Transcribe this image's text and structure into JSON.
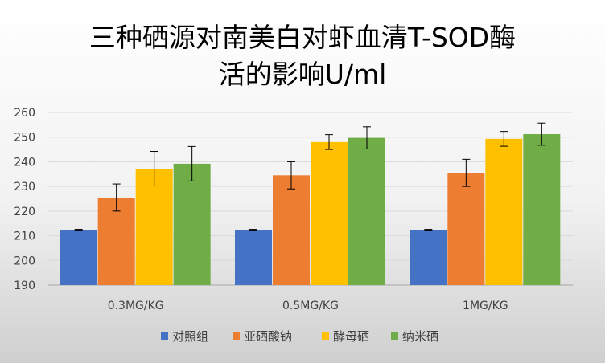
{
  "chart_data": {
    "type": "bar",
    "title_line1": "三种硒源对南美白对虾血清T-SOD酶",
    "title_line2": "活的影响U/ml",
    "categories": [
      "0.3MG/KG",
      "0.5MG/KG",
      "1MG/KG"
    ],
    "ylim": [
      190,
      260
    ],
    "yticks": [
      190,
      200,
      210,
      220,
      230,
      240,
      250,
      260
    ],
    "xlabel": "",
    "ylabel": "",
    "grid": true,
    "legend_position": "bottom",
    "series": [
      {
        "name": "对照组",
        "color": "#4472C4",
        "values": [
          212.3,
          212.3,
          212.3
        ],
        "errors": [
          0.3,
          0.3,
          0.3
        ]
      },
      {
        "name": "亚硒酸钠",
        "color": "#ED7D31",
        "values": [
          225.5,
          234.5,
          235.5
        ],
        "errors": [
          5.5,
          5.5,
          5.5
        ]
      },
      {
        "name": "酵母硒",
        "color": "#FFC000",
        "values": [
          237.2,
          248.0,
          249.3
        ],
        "errors": [
          7.0,
          3.0,
          3.0
        ]
      },
      {
        "name": "纳米硒",
        "color": "#70AD47",
        "values": [
          239.2,
          249.7,
          251.2
        ],
        "errors": [
          7.0,
          4.5,
          4.5
        ]
      }
    ]
  }
}
